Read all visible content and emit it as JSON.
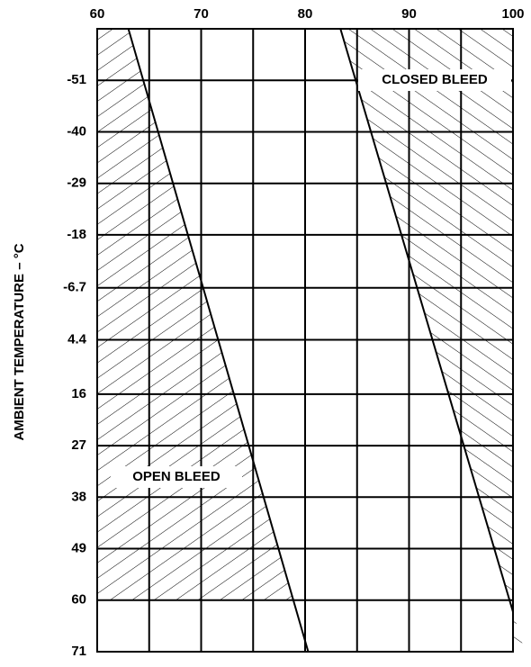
{
  "chart_data": {
    "type": "line",
    "ylabel": "AMBIENT TEMPERATURE – °C",
    "xlim": [
      60,
      100
    ],
    "xticks": [
      60,
      70,
      80,
      90,
      100
    ],
    "xminor": [
      65,
      75,
      85,
      95
    ],
    "ylim": [
      -62,
      71
    ],
    "yinverted": true,
    "yticks": [
      -51,
      -40,
      -29,
      -18,
      -6.7,
      4.4,
      16,
      27,
      38,
      49,
      60,
      71
    ],
    "grid": true,
    "color": "#000000",
    "series": [
      {
        "x": [
          63,
          80.3
        ],
        "values": [
          -62,
          71
        ],
        "hatch_side": "left",
        "hatch_ylim": [
          -62,
          60
        ]
      },
      {
        "x": [
          83.4,
          100
        ],
        "values": [
          -62,
          62.5
        ],
        "hatch_side": "right",
        "hatch_ylim": [
          -62,
          71
        ]
      }
    ],
    "annotations": [
      "CLOSED BLEED",
      "OPEN BLEED"
    ]
  }
}
